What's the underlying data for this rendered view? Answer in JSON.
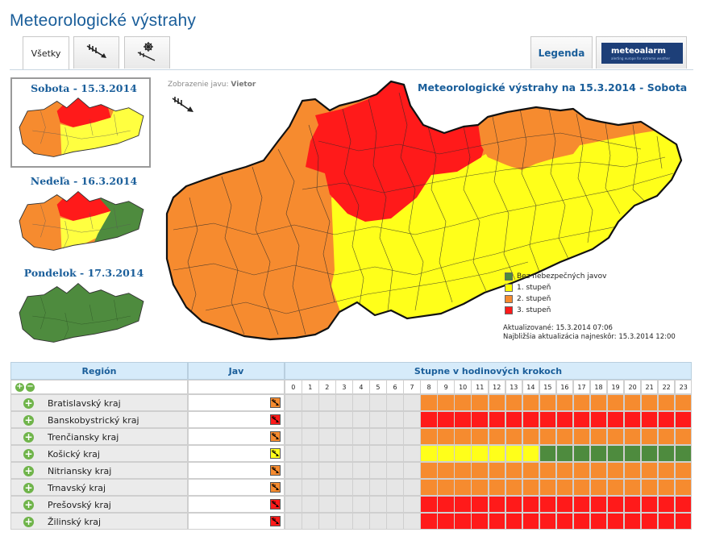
{
  "page": {
    "title": "Meteorologické výstrahy"
  },
  "tabs": [
    {
      "label": "Všetky",
      "icon": "text"
    },
    {
      "label": "",
      "icon": "wind-icon"
    },
    {
      "label": "",
      "icon": "snow-icon"
    }
  ],
  "legend_tab": {
    "label": "Legenda"
  },
  "logo": {
    "text": "meteoalarm",
    "tagline": "alerting europe for extreme weather"
  },
  "days": [
    {
      "label": "Sobota - 15.3.2014",
      "selected": true
    },
    {
      "label": "Nedeľa - 16.3.2014",
      "selected": false
    },
    {
      "label": "Pondelok - 17.3.2014",
      "selected": false
    }
  ],
  "viewing": {
    "prefix": "Zobrazenie javu:",
    "value": "Vietor"
  },
  "map": {
    "title": "Meteorologické výstrahy na 15.3.2014 - Sobota"
  },
  "legend": [
    {
      "label": "Bez nebezpečných javov",
      "color": "#4e8b3e"
    },
    {
      "label": "1. stupeň",
      "color": "#ffff00"
    },
    {
      "label": "2. stupeň",
      "color": "#f68b2f"
    },
    {
      "label": "3. stupeň",
      "color": "#ff1a1a"
    }
  ],
  "updates": {
    "updated": "Aktualizované: 15.3.2014 07:06",
    "next": "Najbližšia aktualizácia najneskôr: 15.3.2014 12:00"
  },
  "table": {
    "headers": {
      "region": "Región",
      "phenomenon": "Jav",
      "hours": "Stupne v hodinových krokoch"
    },
    "hours": [
      "0",
      "1",
      "2",
      "3",
      "4",
      "5",
      "6",
      "7",
      "8",
      "9",
      "10",
      "11",
      "12",
      "13",
      "14",
      "15",
      "16",
      "17",
      "18",
      "19",
      "20",
      "21",
      "22",
      "23"
    ],
    "rows": [
      {
        "region": "Bratislavský kraj",
        "level": 2,
        "hour_levels": [
          0,
          0,
          0,
          0,
          0,
          0,
          0,
          0,
          2,
          2,
          2,
          2,
          2,
          2,
          2,
          2,
          2,
          2,
          2,
          2,
          2,
          2,
          2,
          2
        ]
      },
      {
        "region": "Banskobystrický kraj",
        "level": 3,
        "hour_levels": [
          0,
          0,
          0,
          0,
          0,
          0,
          0,
          0,
          3,
          3,
          3,
          3,
          3,
          3,
          3,
          3,
          3,
          3,
          3,
          3,
          3,
          3,
          3,
          3
        ]
      },
      {
        "region": "Trenčiansky kraj",
        "level": 2,
        "hour_levels": [
          0,
          0,
          0,
          0,
          0,
          0,
          0,
          0,
          2,
          2,
          2,
          2,
          2,
          2,
          2,
          2,
          2,
          2,
          2,
          2,
          2,
          2,
          2,
          2
        ]
      },
      {
        "region": "Košický kraj",
        "level": 1,
        "hour_levels": [
          0,
          0,
          0,
          0,
          0,
          0,
          0,
          0,
          1,
          1,
          1,
          1,
          1,
          1,
          1,
          4,
          4,
          4,
          4,
          4,
          4,
          4,
          4,
          4
        ]
      },
      {
        "region": "Nitriansky kraj",
        "level": 2,
        "hour_levels": [
          0,
          0,
          0,
          0,
          0,
          0,
          0,
          0,
          2,
          2,
          2,
          2,
          2,
          2,
          2,
          2,
          2,
          2,
          2,
          2,
          2,
          2,
          2,
          2
        ]
      },
      {
        "region": "Trnavský kraj",
        "level": 2,
        "hour_levels": [
          0,
          0,
          0,
          0,
          0,
          0,
          0,
          0,
          2,
          2,
          2,
          2,
          2,
          2,
          2,
          2,
          2,
          2,
          2,
          2,
          2,
          2,
          2,
          2
        ]
      },
      {
        "region": "Prešovský kraj",
        "level": 3,
        "hour_levels": [
          0,
          0,
          0,
          0,
          0,
          0,
          0,
          0,
          3,
          3,
          3,
          3,
          3,
          3,
          3,
          3,
          3,
          3,
          3,
          3,
          3,
          3,
          3,
          3
        ]
      },
      {
        "region": "Žilinský kraj",
        "level": 3,
        "hour_levels": [
          0,
          0,
          0,
          0,
          0,
          0,
          0,
          0,
          3,
          3,
          3,
          3,
          3,
          3,
          3,
          3,
          3,
          3,
          3,
          3,
          3,
          3,
          3,
          3
        ]
      }
    ]
  },
  "level_colors": {
    "0": "#e6e6e6",
    "1": "#ffff1a",
    "2": "#f68b2f",
    "3": "#ff1a1a",
    "4": "#4e8b3e"
  }
}
